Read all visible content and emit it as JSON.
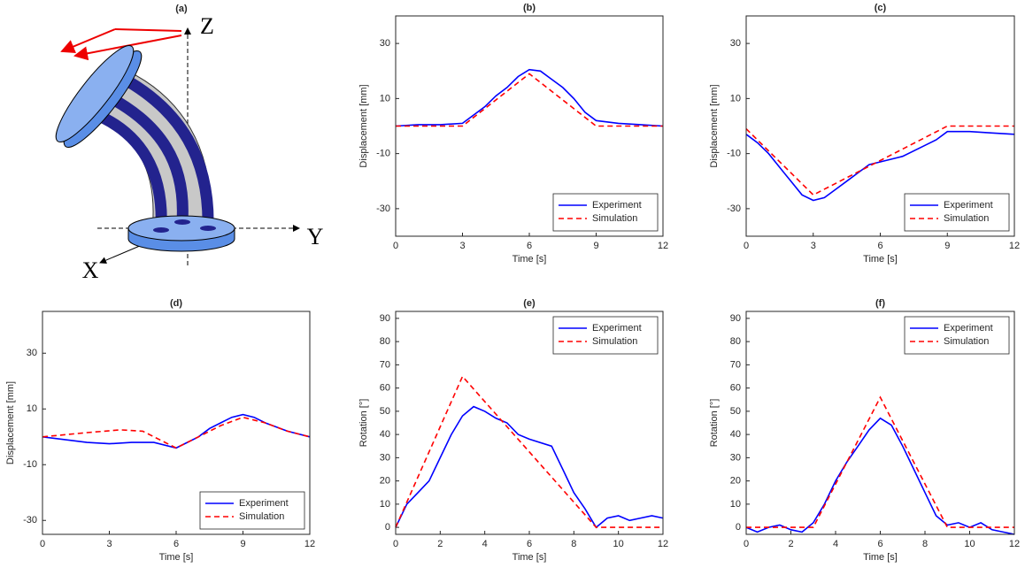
{
  "diagram": {
    "title": "(a)",
    "labels": {
      "z": "Z",
      "y": "Y",
      "x": "X"
    }
  },
  "chart_data": [
    {
      "type": "line",
      "title": "(b)",
      "xlabel": "Time [s]",
      "ylabel": "Displacement [mm]",
      "xlim": [
        0,
        12
      ],
      "xticks": [
        0,
        3,
        6,
        9,
        12
      ],
      "ylim": [
        -40,
        40
      ],
      "yticks": [
        -30,
        -10,
        10,
        30
      ],
      "legend_loc": "lower right",
      "series": [
        {
          "name": "Experiment",
          "color": "#0000ff",
          "style": "solid",
          "x": [
            0,
            1,
            2,
            3,
            3.5,
            4,
            4.5,
            5,
            5.5,
            6,
            6.5,
            7,
            7.5,
            8,
            8.5,
            9,
            10,
            11,
            12
          ],
          "values": [
            0,
            0.5,
            0.5,
            1,
            4,
            7,
            11,
            14,
            18,
            20.5,
            20,
            17,
            14,
            10,
            5,
            2,
            1,
            0.5,
            0
          ]
        },
        {
          "name": "Simulation",
          "color": "#ff0000",
          "style": "dashed",
          "x": [
            0,
            3,
            6,
            9,
            12
          ],
          "values": [
            0,
            0,
            19,
            0,
            0
          ]
        }
      ]
    },
    {
      "type": "line",
      "title": "(c)",
      "xlabel": "Time [s]",
      "ylabel": "Displacement [mm]",
      "xlim": [
        0,
        12
      ],
      "xticks": [
        0,
        3,
        6,
        9,
        12
      ],
      "ylim": [
        -40,
        40
      ],
      "yticks": [
        -30,
        -10,
        10,
        30
      ],
      "legend_loc": "lower right",
      "series": [
        {
          "name": "Experiment",
          "color": "#0000ff",
          "style": "solid",
          "x": [
            0,
            0.5,
            1,
            1.5,
            2,
            2.5,
            3,
            3.5,
            4,
            4.5,
            5,
            5.5,
            6,
            7,
            8,
            8.5,
            9,
            10,
            11,
            12
          ],
          "values": [
            -3,
            -6,
            -10,
            -15,
            -20,
            -25,
            -27,
            -26,
            -23,
            -20,
            -17,
            -14,
            -13,
            -11,
            -7,
            -5,
            -2,
            -2,
            -2.5,
            -3
          ]
        },
        {
          "name": "Simulation",
          "color": "#ff0000",
          "style": "dashed",
          "x": [
            0,
            3,
            9,
            12
          ],
          "values": [
            -1,
            -25,
            0,
            0
          ]
        }
      ]
    },
    {
      "type": "line",
      "title": "(d)",
      "xlabel": "Time [s]",
      "ylabel": "Displacement [mm]",
      "xlim": [
        0,
        12
      ],
      "xticks": [
        0,
        3,
        6,
        9,
        12
      ],
      "ylim": [
        -35,
        45
      ],
      "yticks": [
        -30,
        -10,
        10,
        30
      ],
      "legend_loc": "lower right",
      "series": [
        {
          "name": "Experiment",
          "color": "#0000ff",
          "style": "solid",
          "x": [
            0,
            1,
            2,
            3,
            4,
            5,
            6,
            6.5,
            7,
            7.5,
            8,
            8.5,
            9,
            9.5,
            10,
            11,
            12
          ],
          "values": [
            0,
            -1,
            -2,
            -2.5,
            -2,
            -2,
            -4,
            -2,
            0,
            3,
            5,
            7,
            8,
            7,
            5,
            2,
            0
          ]
        },
        {
          "name": "Simulation",
          "color": "#ff0000",
          "style": "dashed",
          "x": [
            0,
            2,
            3.5,
            4.5,
            6,
            7,
            8,
            9,
            10,
            11,
            12
          ],
          "values": [
            0,
            1.5,
            2.5,
            2,
            -4,
            0,
            4,
            7,
            5,
            2,
            0
          ]
        }
      ]
    },
    {
      "type": "line",
      "title": "(e)",
      "xlabel": "Time [s]",
      "ylabel": "Rotation [°]",
      "xlim": [
        0,
        12
      ],
      "xticks": [
        0,
        2,
        4,
        6,
        8,
        10,
        12
      ],
      "ylim": [
        -3,
        93
      ],
      "yticks": [
        0,
        10,
        20,
        30,
        40,
        50,
        60,
        70,
        80,
        90
      ],
      "legend_loc": "upper right",
      "series": [
        {
          "name": "Experiment",
          "color": "#0000ff",
          "style": "solid",
          "x": [
            0,
            0.5,
            1,
            1.5,
            2,
            2.5,
            3,
            3.5,
            4,
            4.5,
            5,
            5.5,
            6,
            7,
            7.5,
            8,
            8.5,
            9,
            9.5,
            10,
            10.5,
            11,
            11.5,
            12
          ],
          "values": [
            0,
            10,
            15,
            20,
            30,
            40,
            48,
            52,
            50,
            47,
            45,
            40,
            38,
            35,
            25,
            15,
            8,
            0,
            4,
            5,
            3,
            4,
            5,
            4
          ]
        },
        {
          "name": "Simulation",
          "color": "#ff0000",
          "style": "dashed",
          "x": [
            0,
            3,
            9,
            12
          ],
          "values": [
            0,
            65,
            0,
            0
          ]
        }
      ]
    },
    {
      "type": "line",
      "title": "(f)",
      "xlabel": "Time [s]",
      "ylabel": "Rotation [°]",
      "xlim": [
        0,
        12
      ],
      "xticks": [
        0,
        2,
        4,
        6,
        8,
        10,
        12
      ],
      "ylim": [
        -3,
        93
      ],
      "yticks": [
        0,
        10,
        20,
        30,
        40,
        50,
        60,
        70,
        80,
        90
      ],
      "legend_loc": "upper right",
      "series": [
        {
          "name": "Experiment",
          "color": "#0000ff",
          "style": "solid",
          "x": [
            0,
            0.5,
            1,
            1.5,
            2,
            2.5,
            3,
            3.5,
            4,
            4.5,
            5,
            5.5,
            6,
            6.5,
            7,
            7.5,
            8,
            8.5,
            9,
            9.5,
            10,
            10.5,
            11,
            11.5,
            12
          ],
          "values": [
            0,
            -2,
            0,
            1,
            -1,
            -2,
            2,
            10,
            20,
            28,
            35,
            42,
            47,
            44,
            35,
            25,
            15,
            5,
            1,
            2,
            0,
            2,
            -1,
            -2,
            -3
          ]
        },
        {
          "name": "Simulation",
          "color": "#ff0000",
          "style": "dashed",
          "x": [
            0,
            3,
            6,
            9,
            12
          ],
          "values": [
            0,
            0,
            56,
            0,
            0
          ]
        }
      ]
    }
  ]
}
